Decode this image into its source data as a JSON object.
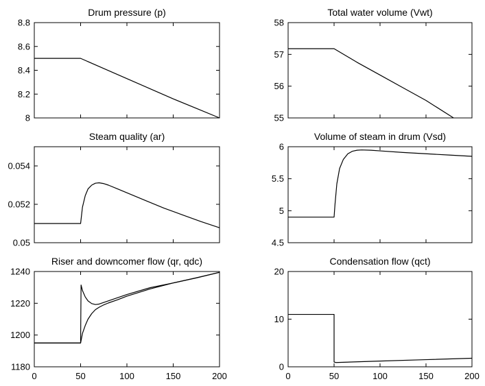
{
  "chart_data": [
    {
      "type": "line",
      "title": "Drum pressure (p)",
      "xlim": [
        50,
        200
      ],
      "ylim": [
        8,
        8.8
      ],
      "xticks": [],
      "yticks": [
        8,
        8.2,
        8.4,
        8.6,
        8.8
      ],
      "ytick_labels": [
        "8",
        "8.2",
        "8.4",
        "8.6",
        "8.8"
      ],
      "series": [
        {
          "x": [
            0,
            50,
            75,
            100,
            125,
            150,
            175,
            200
          ],
          "y": [
            8.5,
            8.5,
            8.415,
            8.33,
            8.245,
            8.16,
            8.08,
            8.0
          ]
        }
      ]
    },
    {
      "type": "line",
      "title": "Total water volume (Vwt)",
      "xlim": [
        0,
        200
      ],
      "ylim": [
        55,
        58
      ],
      "xticks": [],
      "yticks": [
        55,
        56,
        57,
        58
      ],
      "ytick_labels": [
        "55",
        "56",
        "57",
        "58"
      ],
      "series": [
        {
          "x": [
            0,
            50,
            75,
            100,
            125,
            150,
            180
          ],
          "y": [
            57.18,
            57.18,
            56.75,
            56.35,
            55.95,
            55.55,
            55.0
          ]
        }
      ]
    },
    {
      "type": "line",
      "title": "Steam quality (ar)",
      "xlim": [
        0,
        200
      ],
      "ylim": [
        0.05,
        0.055
      ],
      "xticks": [],
      "yticks": [
        0.05,
        0.052,
        0.054
      ],
      "ytick_labels": [
        "0.05",
        "0.052",
        "0.054"
      ],
      "series": [
        {
          "x": [
            0,
            50,
            52,
            55,
            58,
            62,
            66,
            70,
            75,
            80,
            90,
            100,
            120,
            140,
            160,
            180,
            200
          ],
          "y": [
            0.051,
            0.051,
            0.05185,
            0.05245,
            0.0528,
            0.053,
            0.0531,
            0.05312,
            0.05308,
            0.053,
            0.0528,
            0.0526,
            0.0522,
            0.0518,
            0.05145,
            0.0511,
            0.05078
          ]
        }
      ]
    },
    {
      "type": "line",
      "title": "Volume of steam in drum (Vsd)",
      "xlim": [
        0,
        200
      ],
      "ylim": [
        4.5,
        6
      ],
      "xticks": [],
      "yticks": [
        4.5,
        5,
        5.5,
        6
      ],
      "ytick_labels": [
        "4.5",
        "5",
        "5.5",
        "6"
      ],
      "series": [
        {
          "x": [
            0,
            50,
            51,
            53,
            56,
            60,
            65,
            70,
            75,
            80,
            90,
            100,
            125,
            150,
            175,
            200
          ],
          "y": [
            4.9,
            4.9,
            5.1,
            5.42,
            5.66,
            5.8,
            5.89,
            5.93,
            5.945,
            5.95,
            5.945,
            5.935,
            5.91,
            5.89,
            5.87,
            5.85
          ]
        }
      ]
    },
    {
      "type": "line",
      "title": "Riser and downcomer flow (qr, qdc)",
      "xlim": [
        0,
        200
      ],
      "ylim": [
        1180,
        1240
      ],
      "xticks": [
        0,
        50,
        100,
        150,
        200
      ],
      "xtick_labels": [
        "0",
        "50",
        "100",
        "150",
        "200"
      ],
      "yticks": [
        1180,
        1200,
        1220,
        1240
      ],
      "ytick_labels": [
        "1180",
        "1200",
        "1220",
        "1240"
      ],
      "series": [
        {
          "x": [
            0,
            50,
            50.5,
            52,
            55,
            58,
            62,
            66,
            70,
            80,
            100,
            125,
            150,
            175,
            200
          ],
          "y": [
            1195,
            1195,
            1231.5,
            1228,
            1224,
            1221.5,
            1219.8,
            1219.2,
            1219.5,
            1221.5,
            1225.5,
            1229.8,
            1232.8,
            1236,
            1239.5
          ]
        },
        {
          "x": [
            0,
            50,
            52,
            55,
            58,
            62,
            66,
            70,
            75,
            80,
            90,
            100,
            125,
            150,
            175,
            200
          ],
          "y": [
            1195,
            1195,
            1201,
            1206,
            1210,
            1213.5,
            1216,
            1217.5,
            1219,
            1220.2,
            1222.2,
            1224.5,
            1229,
            1232.8,
            1236,
            1239.5
          ]
        }
      ]
    },
    {
      "type": "line",
      "title": "Condensation flow (qct)",
      "xlim": [
        0,
        200
      ],
      "ylim": [
        0,
        20
      ],
      "xticks": [
        0,
        50,
        100,
        150,
        200
      ],
      "xtick_labels": [
        "0",
        "50",
        "100",
        "150",
        "200"
      ],
      "yticks": [
        0,
        10,
        20
      ],
      "ytick_labels": [
        "0",
        "10",
        "20"
      ],
      "series": [
        {
          "x": [
            0,
            50,
            50,
            52,
            100,
            150,
            200
          ],
          "y": [
            11,
            11,
            1,
            0.9,
            1.2,
            1.5,
            1.8
          ]
        }
      ]
    }
  ]
}
